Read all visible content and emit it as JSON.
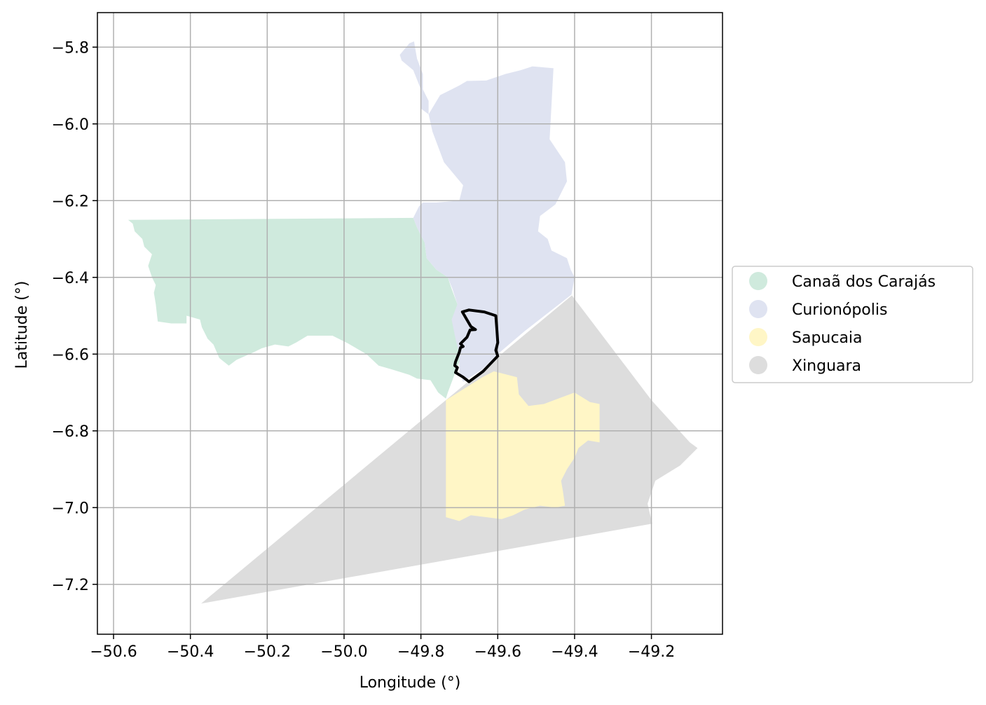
{
  "chart_data": {
    "type": "map",
    "title": "",
    "xlabel": "Longitude (°)",
    "ylabel": "Latitude (°)",
    "xlim": [
      -50.642,
      -49.015
    ],
    "ylim": [
      -7.33,
      -5.71
    ],
    "grid": true,
    "x_ticks": [
      {
        "value": -50.6,
        "label": "−50.6"
      },
      {
        "value": -50.4,
        "label": "−50.4"
      },
      {
        "value": -50.2,
        "label": "−50.2"
      },
      {
        "value": -50.0,
        "label": "−50.0"
      },
      {
        "value": -49.8,
        "label": "−49.8"
      },
      {
        "value": -49.6,
        "label": "−49.6"
      },
      {
        "value": -49.4,
        "label": "−49.4"
      },
      {
        "value": -49.2,
        "label": "−49.2"
      }
    ],
    "y_ticks": [
      {
        "value": -5.8,
        "label": "−5.8"
      },
      {
        "value": -6.0,
        "label": "−6.0"
      },
      {
        "value": -6.2,
        "label": "−6.2"
      },
      {
        "value": -6.4,
        "label": "−6.4"
      },
      {
        "value": -6.6,
        "label": "−6.6"
      },
      {
        "value": -6.8,
        "label": "−6.8"
      },
      {
        "value": -7.0,
        "label": "−7.0"
      },
      {
        "value": -7.2,
        "label": "−7.2"
      }
    ],
    "legend_position": "right",
    "regions": [
      {
        "name": "Xinguara",
        "color": "#dddddd",
        "polygon": [
          [
            -50.372,
            -7.25
          ],
          [
            -49.407,
            -6.447
          ],
          [
            -49.2,
            -6.72
          ],
          [
            -49.1,
            -6.83
          ],
          [
            -49.08,
            -6.845
          ],
          [
            -49.125,
            -6.89
          ],
          [
            -49.19,
            -6.93
          ],
          [
            -49.21,
            -6.99
          ],
          [
            -49.198,
            -7.042
          ]
        ]
      },
      {
        "name": "Canaã dos Carajás",
        "color": "#cfeadd",
        "polygon": [
          [
            -50.562,
            -6.25
          ],
          [
            -49.82,
            -6.245
          ],
          [
            -49.81,
            -6.27
          ],
          [
            -49.79,
            -6.31
          ],
          [
            -49.785,
            -6.35
          ],
          [
            -49.76,
            -6.38
          ],
          [
            -49.73,
            -6.4
          ],
          [
            -49.72,
            -6.43
          ],
          [
            -49.705,
            -6.47
          ],
          [
            -49.715,
            -6.52
          ],
          [
            -49.7,
            -6.56
          ],
          [
            -49.7,
            -6.62
          ],
          [
            -49.715,
            -6.66
          ],
          [
            -49.73,
            -6.7
          ],
          [
            -49.735,
            -6.716
          ],
          [
            -49.755,
            -6.7
          ],
          [
            -49.775,
            -6.668
          ],
          [
            -49.81,
            -6.664
          ],
          [
            -49.83,
            -6.654
          ],
          [
            -49.878,
            -6.639
          ],
          [
            -49.91,
            -6.63
          ],
          [
            -49.942,
            -6.6
          ],
          [
            -49.99,
            -6.572
          ],
          [
            -50.03,
            -6.552
          ],
          [
            -50.095,
            -6.552
          ],
          [
            -50.125,
            -6.57
          ],
          [
            -50.145,
            -6.58
          ],
          [
            -50.18,
            -6.575
          ],
          [
            -50.215,
            -6.585
          ],
          [
            -50.235,
            -6.595
          ],
          [
            -50.28,
            -6.615
          ],
          [
            -50.3,
            -6.63
          ],
          [
            -50.325,
            -6.61
          ],
          [
            -50.34,
            -6.575
          ],
          [
            -50.355,
            -6.56
          ],
          [
            -50.37,
            -6.53
          ],
          [
            -50.375,
            -6.51
          ],
          [
            -50.41,
            -6.5
          ],
          [
            -50.41,
            -6.52
          ],
          [
            -50.45,
            -6.52
          ],
          [
            -50.485,
            -6.515
          ],
          [
            -50.49,
            -6.47
          ],
          [
            -50.495,
            -6.44
          ],
          [
            -50.49,
            -6.42
          ],
          [
            -50.5,
            -6.4
          ],
          [
            -50.51,
            -6.37
          ],
          [
            -50.5,
            -6.34
          ],
          [
            -50.52,
            -6.32
          ],
          [
            -50.525,
            -6.3
          ],
          [
            -50.545,
            -6.28
          ],
          [
            -50.55,
            -6.26
          ]
        ]
      },
      {
        "name": "Curionópolis",
        "color": "#dfe3f1",
        "polygon": [
          [
            -49.818,
            -5.785
          ],
          [
            -49.81,
            -5.83
          ],
          [
            -49.795,
            -5.87
          ],
          [
            -49.795,
            -5.91
          ],
          [
            -49.78,
            -5.94
          ],
          [
            -49.78,
            -5.975
          ],
          [
            -49.75,
            -5.925
          ],
          [
            -49.72,
            -5.91
          ],
          [
            -49.7,
            -5.9
          ],
          [
            -49.68,
            -5.888
          ],
          [
            -49.63,
            -5.887
          ],
          [
            -49.58,
            -5.87
          ],
          [
            -49.54,
            -5.86
          ],
          [
            -49.51,
            -5.85
          ],
          [
            -49.455,
            -5.855
          ],
          [
            -49.46,
            -5.95
          ],
          [
            -49.465,
            -6.04
          ],
          [
            -49.425,
            -6.1
          ],
          [
            -49.42,
            -6.15
          ],
          [
            -49.45,
            -6.21
          ],
          [
            -49.49,
            -6.24
          ],
          [
            -49.495,
            -6.28
          ],
          [
            -49.47,
            -6.3
          ],
          [
            -49.46,
            -6.33
          ],
          [
            -49.42,
            -6.35
          ],
          [
            -49.41,
            -6.38
          ],
          [
            -49.4,
            -6.4
          ],
          [
            -49.408,
            -6.445
          ],
          [
            -49.53,
            -6.54
          ],
          [
            -49.6,
            -6.6
          ],
          [
            -49.64,
            -6.64
          ],
          [
            -49.69,
            -6.672
          ],
          [
            -49.7,
            -6.65
          ],
          [
            -49.7,
            -6.6
          ],
          [
            -49.71,
            -6.56
          ],
          [
            -49.72,
            -6.51
          ],
          [
            -49.705,
            -6.47
          ],
          [
            -49.718,
            -6.43
          ],
          [
            -49.73,
            -6.4
          ],
          [
            -49.76,
            -6.38
          ],
          [
            -49.785,
            -6.35
          ],
          [
            -49.79,
            -6.31
          ],
          [
            -49.81,
            -6.27
          ],
          [
            -49.82,
            -6.245
          ],
          [
            -49.805,
            -6.215
          ],
          [
            -49.795,
            -6.205
          ],
          [
            -49.76,
            -6.205
          ],
          [
            -49.7,
            -6.2
          ],
          [
            -49.69,
            -6.16
          ],
          [
            -49.74,
            -6.1
          ],
          [
            -49.77,
            -6.02
          ],
          [
            -49.78,
            -5.975
          ],
          [
            -49.8,
            -5.96
          ],
          [
            -49.8,
            -5.91
          ],
          [
            -49.82,
            -5.86
          ],
          [
            -49.85,
            -5.835
          ],
          [
            -49.855,
            -5.82
          ],
          [
            -49.83,
            -5.79
          ]
        ]
      },
      {
        "name": "Sapucaia",
        "color": "#fff6c6",
        "polygon": [
          [
            -49.735,
            -6.72
          ],
          [
            -49.64,
            -6.66
          ],
          [
            -49.61,
            -6.645
          ],
          [
            -49.55,
            -6.66
          ],
          [
            -49.545,
            -6.705
          ],
          [
            -49.52,
            -6.735
          ],
          [
            -49.48,
            -6.73
          ],
          [
            -49.44,
            -6.715
          ],
          [
            -49.4,
            -6.7
          ],
          [
            -49.36,
            -6.725
          ],
          [
            -49.335,
            -6.73
          ],
          [
            -49.335,
            -6.83
          ],
          [
            -49.365,
            -6.825
          ],
          [
            -49.39,
            -6.845
          ],
          [
            -49.4,
            -6.87
          ],
          [
            -49.42,
            -6.9
          ],
          [
            -49.435,
            -6.93
          ],
          [
            -49.43,
            -6.96
          ],
          [
            -49.425,
            -6.995
          ],
          [
            -49.45,
            -7.0
          ],
          [
            -49.49,
            -6.995
          ],
          [
            -49.53,
            -7.005
          ],
          [
            -49.56,
            -7.02
          ],
          [
            -49.59,
            -7.03
          ],
          [
            -49.63,
            -7.025
          ],
          [
            -49.67,
            -7.02
          ],
          [
            -49.7,
            -7.035
          ],
          [
            -49.735,
            -7.025
          ]
        ]
      }
    ],
    "highlight": {
      "color": "#000000",
      "polyline": [
        [
          -49.692,
          -6.49
        ],
        [
          -49.67,
          -6.528
        ],
        [
          -49.658,
          -6.536
        ],
        [
          -49.672,
          -6.537
        ],
        [
          -49.68,
          -6.556
        ],
        [
          -49.69,
          -6.566
        ],
        [
          -49.697,
          -6.573
        ],
        [
          -49.69,
          -6.58
        ],
        [
          -49.697,
          -6.583
        ],
        [
          -49.7,
          -6.595
        ],
        [
          -49.71,
          -6.62
        ],
        [
          -49.712,
          -6.63
        ],
        [
          -49.705,
          -6.635
        ],
        [
          -49.71,
          -6.648
        ],
        [
          -49.69,
          -6.66
        ],
        [
          -49.675,
          -6.672
        ],
        [
          -49.638,
          -6.645
        ],
        [
          -49.6,
          -6.605
        ],
        [
          -49.605,
          -6.59
        ],
        [
          -49.6,
          -6.57
        ],
        [
          -49.602,
          -6.54
        ],
        [
          -49.605,
          -6.5
        ],
        [
          -49.635,
          -6.49
        ],
        [
          -49.675,
          -6.485
        ],
        [
          -49.692,
          -6.49
        ]
      ]
    },
    "legend": [
      {
        "label": "Canaã dos Carajás",
        "color": "#cfeadd"
      },
      {
        "label": "Curionópolis",
        "color": "#dfe3f1"
      },
      {
        "label": "Sapucaia",
        "color": "#fff6c6"
      },
      {
        "label": "Xinguara",
        "color": "#dddddd"
      }
    ]
  }
}
